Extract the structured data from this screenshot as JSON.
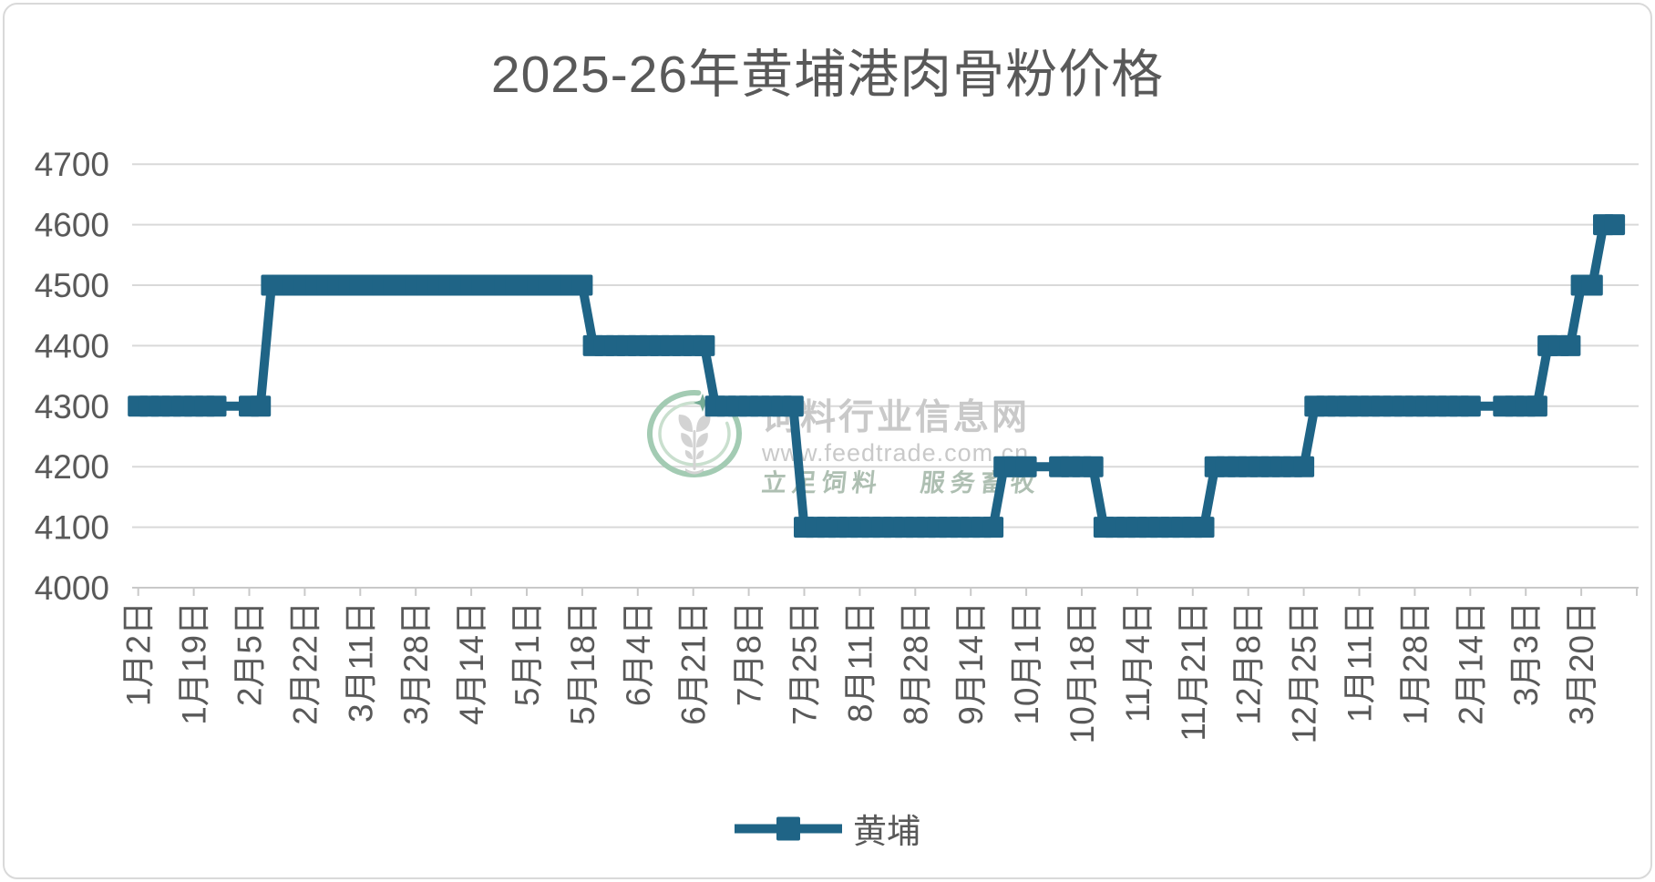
{
  "frame": {
    "background": "#ffffff",
    "border_color": "#d9d9d9"
  },
  "title": {
    "text": "2025-26年黄埔港肉骨粉价格",
    "color": "#595959"
  },
  "legend": {
    "label": "黄埔"
  },
  "watermark": {
    "logo_icon": "wheat-ellipse-logo",
    "site_name": "饲料行业信息网",
    "url": "www.feedtrade.com.cn",
    "slogan_left": "立足饲料",
    "slogan_right": "服务畜牧",
    "ring_color": "#a3cbb3",
    "inner_ring_color": "#c9dfce",
    "wheat_color": "#d3d3d3",
    "sparkle_color": "#76ac96",
    "text_color": "#c9c9c9",
    "slogan_color": "#aebfb2"
  },
  "chart_data": {
    "type": "line",
    "title": "2025-26年黄埔港肉骨粉价格",
    "ylabel": "",
    "xlabel": "",
    "ylim": [
      4000,
      4700
    ],
    "y_ticks": [
      4000,
      4100,
      4200,
      4300,
      4400,
      4500,
      4600,
      4700
    ],
    "grid": "horizontal",
    "gridline_color": "#d9d9d9",
    "axis_color": "#c9c9c9",
    "axis_text_color": "#595959",
    "legend_position": "bottom",
    "x_tick_labels": [
      "1月2日",
      "1月19日",
      "2月5日",
      "2月22日",
      "3月11日",
      "3月28日",
      "4月14日",
      "5月1日",
      "5月18日",
      "6月4日",
      "6月21日",
      "7月8日",
      "7月25日",
      "8月11日",
      "8月28日",
      "9月14日",
      "10月1日",
      "10月18日",
      "11月4日",
      "11月21日",
      "12月8日",
      "12月25日",
      "1月11日",
      "1月28日",
      "2月14日",
      "3月3日",
      "3月20日"
    ],
    "points_per_x_tick": 5,
    "series": [
      {
        "name": "黄埔",
        "color": "#1f6486",
        "marker": "square",
        "values": [
          4300,
          4300,
          4300,
          4300,
          4300,
          4300,
          4300,
          4300,
          null,
          null,
          4300,
          4300,
          4500,
          4500,
          4500,
          4500,
          4500,
          4500,
          4500,
          4500,
          4500,
          4500,
          4500,
          4500,
          4500,
          4500,
          4500,
          4500,
          4500,
          4500,
          4500,
          4500,
          4500,
          4500,
          4500,
          4500,
          4500,
          4500,
          4500,
          4500,
          4500,
          4400,
          4400,
          4400,
          4400,
          4400,
          4400,
          4400,
          4400,
          4400,
          4400,
          4400,
          4300,
          4300,
          4300,
          4300,
          4300,
          4300,
          4300,
          4300,
          4100,
          4100,
          4100,
          4100,
          4100,
          4100,
          4100,
          4100,
          4100,
          4100,
          4100,
          4100,
          4100,
          4100,
          4100,
          4100,
          4100,
          4100,
          4200,
          4200,
          4200,
          null,
          null,
          4200,
          4200,
          4200,
          4200,
          4100,
          4100,
          4100,
          4100,
          4100,
          4100,
          4100,
          4100,
          4100,
          4100,
          4200,
          4200,
          4200,
          4200,
          4200,
          4200,
          4200,
          4200,
          4200,
          4300,
          4300,
          4300,
          4300,
          4300,
          4300,
          4300,
          4300,
          4300,
          4300,
          4300,
          4300,
          4300,
          4300,
          4300,
          null,
          null,
          4300,
          4300,
          4300,
          4300,
          4400,
          4400,
          4400,
          4500,
          4500,
          4600,
          4600
        ]
      }
    ]
  }
}
